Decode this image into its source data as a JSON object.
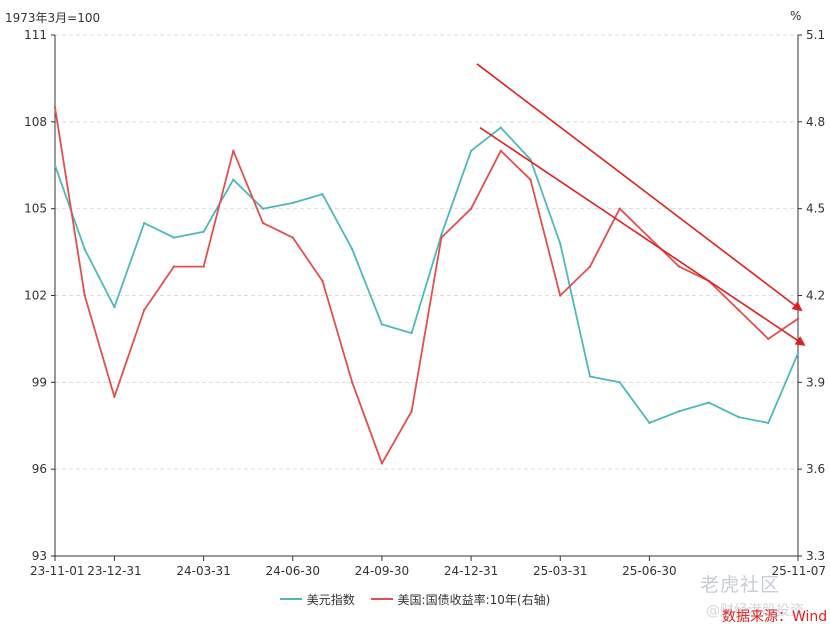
{
  "chart_data": {
    "type": "line",
    "left_unit": "1973年3月=100",
    "right_unit": "%",
    "x_ticks": [
      "23-11-01",
      "23-12-31",
      "24-03-31",
      "24-06-30",
      "24-09-30",
      "24-12-31",
      "25-03-31",
      "25-06-30",
      "25-11-07"
    ],
    "x_tick_index": [
      0,
      2,
      5,
      8,
      11,
      14,
      17,
      20,
      25
    ],
    "y_left_ticks": [
      "93",
      "96",
      "99",
      "102",
      "105",
      "108",
      "111"
    ],
    "y_right_ticks": [
      "3.3",
      "3.6",
      "3.9",
      "4.2",
      "4.5",
      "4.8",
      "5.1"
    ],
    "ylim_left": [
      93,
      111
    ],
    "ylim_right": [
      3.3,
      5.1
    ],
    "series": [
      {
        "name": "美元指数",
        "axis": "left",
        "color": "#4fb8b8",
        "values": [
          106.5,
          103.6,
          101.6,
          104.5,
          104.0,
          104.2,
          106.0,
          105.0,
          105.2,
          105.5,
          103.6,
          101.0,
          100.7,
          104.1,
          107.0,
          107.8,
          106.7,
          103.8,
          99.2,
          99.0,
          97.6,
          98.0,
          98.3,
          97.8,
          97.6,
          100.0
        ]
      },
      {
        "name": "美国:国债收益率:10年(右轴)",
        "axis": "right",
        "color": "#e05050",
        "values": [
          4.85,
          4.2,
          3.85,
          4.15,
          4.3,
          4.3,
          4.7,
          4.45,
          4.4,
          4.25,
          3.9,
          3.62,
          3.8,
          4.4,
          4.5,
          4.7,
          4.6,
          4.2,
          4.3,
          4.5,
          4.4,
          4.3,
          4.25,
          4.15,
          4.05,
          4.12
        ]
      }
    ],
    "trend_arrows": [
      {
        "from": [
          14.2,
          110.0
        ],
        "to": [
          25.1,
          101.5
        ]
      },
      {
        "from": [
          14.3,
          107.8
        ],
        "to": [
          25.2,
          100.3
        ]
      }
    ]
  },
  "legend": [
    {
      "label": "美元指数",
      "color": "#4fb8b8"
    },
    {
      "label": "美国:国债收益率:10年(右轴)",
      "color": "#e05050"
    }
  ],
  "source_text": "数据来源：Wind",
  "watermark_text": "老虎社区",
  "watermark_sub": "@财经港股投资"
}
